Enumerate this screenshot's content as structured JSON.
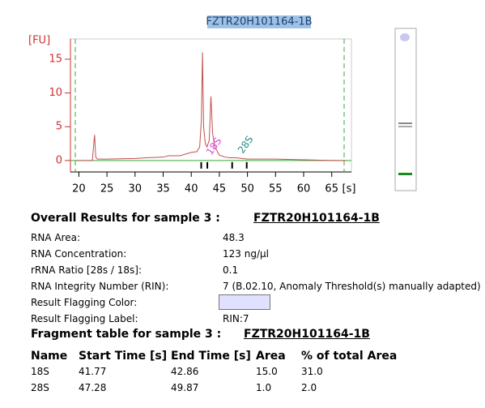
{
  "chart_data": {
    "type": "line",
    "title": "FZTR20H101164-1B",
    "x_label": "[s]",
    "y_label": "[FU]",
    "x": [
      19.5,
      22.4,
      22.6,
      22.8,
      23.0,
      23.3,
      25,
      30,
      32,
      35,
      36,
      38,
      40,
      41,
      41.5,
      41.8,
      42.0,
      42.2,
      42.5,
      42.8,
      43.2,
      43.5,
      43.8,
      44.2,
      45,
      46,
      47,
      48,
      49,
      50,
      55,
      60,
      65,
      67.5
    ],
    "series": [
      {
        "color": "#c0504d",
        "values": [
          0,
          0,
          2,
          3.8,
          0.5,
          0.2,
          0.2,
          0.3,
          0.4,
          0.5,
          0.7,
          0.7,
          1.2,
          1.3,
          2,
          6,
          16,
          5,
          2.5,
          2,
          3,
          9.5,
          4,
          2,
          0.8,
          0.5,
          0.4,
          0.4,
          0.3,
          0.2,
          0.2,
          0.1,
          0,
          0
        ]
      }
    ],
    "xlim": [
      18.5,
      68.5
    ],
    "xticks": [
      20,
      25,
      30,
      35,
      40,
      45,
      50,
      55,
      60,
      65
    ],
    "ylim": [
      -1.7,
      18
    ],
    "yticks": [
      0,
      5,
      10,
      15
    ],
    "annotations": [
      "18S",
      "28S"
    ],
    "annotation_colors": [
      "#e040e0",
      "#2a8a8a"
    ]
  },
  "overall": {
    "heading": "Overall Results for sample 3  :",
    "sample": "FZTR20H101164-1B",
    "rows": [
      [
        "RNA Area:",
        "48.3"
      ],
      [
        "RNA Concentration:",
        "123 ng/µl"
      ],
      [
        "rRNA Ratio [28s / 18s]:",
        "0.1"
      ],
      [
        "RNA Integrity Number (RIN):",
        "7   (B.02.10, Anomaly Threshold(s) manually adapted)"
      ],
      [
        "Result Flagging Color:"
      ],
      [
        "Result Flagging Label:",
        "RIN:7"
      ]
    ]
  },
  "fragments": {
    "heading": "Fragment table for sample 3  :",
    "sample": "FZTR20H101164-1B",
    "columns": [
      "Name",
      "Start Time [s]",
      "End Time [s]",
      "Area",
      "% of total Area"
    ],
    "rows": [
      [
        "18S",
        "41.77",
        "42.86",
        "15.0",
        "31.0"
      ],
      [
        "28S",
        "47.28",
        "49.87",
        "1.0",
        "2.0"
      ]
    ]
  }
}
